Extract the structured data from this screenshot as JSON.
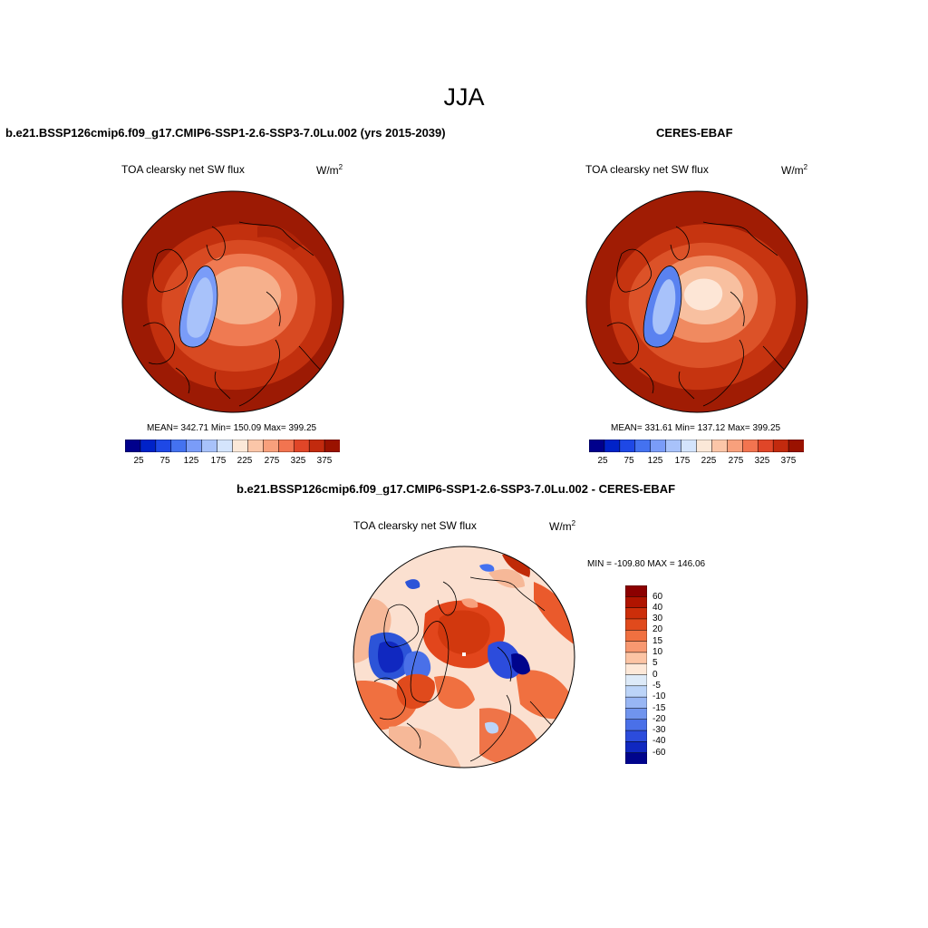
{
  "figure": {
    "season_title": "JJA",
    "panel_left": {
      "title": "b.e21.BSSP126cmip6.f09_g17.CMIP6-SSP1-2.6-SSP3-7.0Lu.002 (yrs 2015-2039)",
      "variable": "TOA clearsky net SW flux",
      "units_base": "W/m",
      "units_exp": "2",
      "stats": "MEAN= 342.71  Min= 150.09  Max= 399.25"
    },
    "panel_right": {
      "title": "CERES-EBAF",
      "variable": "TOA clearsky net SW flux",
      "units_base": "W/m",
      "units_exp": "2",
      "stats": "MEAN= 331.61  Min= 137.12  Max= 399.25"
    },
    "panel_diff": {
      "title": "b.e21.BSSP126cmip6.f09_g17.CMIP6-SSP1-2.6-SSP3-7.0Lu.002 - CERES-EBAF",
      "variable": "TOA clearsky net SW flux",
      "units_base": "W/m",
      "units_exp": "2",
      "minmax": "MIN = -109.80 MAX = 146.06"
    },
    "abs_colorbar": {
      "colors": [
        "#00008c",
        "#0022c8",
        "#1e48e6",
        "#4472f0",
        "#7a9cf8",
        "#a8c2fa",
        "#d4e4fc",
        "#fbe8d8",
        "#fbc6a8",
        "#f8a07c",
        "#f27450",
        "#e04628",
        "#c22a0e",
        "#9a1200"
      ],
      "tick_labels": [
        "25",
        "75",
        "125",
        "175",
        "225",
        "275",
        "325",
        "375"
      ]
    },
    "diff_colorbar": {
      "colors_top_to_bottom": [
        "#8c0000",
        "#b01400",
        "#cc2e0a",
        "#e04a1c",
        "#f07040",
        "#f89870",
        "#fcc4a4",
        "#fde8d8",
        "#ddeaf8",
        "#bcd4f8",
        "#98b6f4",
        "#7094ee",
        "#4a70e8",
        "#2c4cdc",
        "#1028c0",
        "#00048c"
      ],
      "tick_labels": [
        "60",
        "40",
        "30",
        "20",
        "15",
        "10",
        "5",
        "0",
        "-5",
        "-10",
        "-15",
        "-20",
        "-30",
        "-40",
        "-60"
      ]
    },
    "map_fill_colors": {
      "outer": "#9c1a04",
      "mid": "#d0401a",
      "inner": "#ef7a52",
      "pole": "#f6b08c",
      "ice": "#a8c2fa",
      "ice_dark": "#7a9cf8",
      "diff_base": "#fbe0d0",
      "diff_pos": "#e2461c",
      "diff_pos_dark": "#c02a08",
      "diff_neg": "#2c54d8",
      "diff_light": "#f6b898"
    }
  }
}
